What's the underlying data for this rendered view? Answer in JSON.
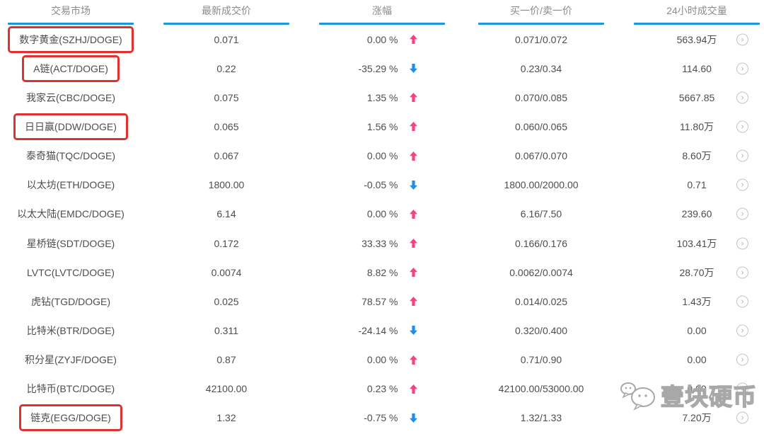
{
  "table": {
    "columns": [
      {
        "key": "market",
        "label": "交易市场"
      },
      {
        "key": "price",
        "label": "最新成交价"
      },
      {
        "key": "change",
        "label": "涨幅"
      },
      {
        "key": "bid_ask",
        "label": "买一价/卖一价"
      },
      {
        "key": "volume",
        "label": "24小时成交量"
      }
    ],
    "rows": [
      {
        "market": "数字黄金(SZHJ/DOGE)",
        "highlighted": true,
        "price": "0.071",
        "change": "0.00 %",
        "direction": "up",
        "bid_ask": "0.071/0.072",
        "volume": "563.94万"
      },
      {
        "market": "A链(ACT/DOGE)",
        "highlighted": true,
        "price": "0.22",
        "change": "-35.29 %",
        "direction": "down",
        "bid_ask": "0.23/0.34",
        "volume": "114.60"
      },
      {
        "market": "我家云(CBC/DOGE)",
        "highlighted": false,
        "price": "0.075",
        "change": "1.35 %",
        "direction": "up",
        "bid_ask": "0.070/0.085",
        "volume": "5667.85"
      },
      {
        "market": "日日赢(DDW/DOGE)",
        "highlighted": true,
        "price": "0.065",
        "change": "1.56 %",
        "direction": "up",
        "bid_ask": "0.060/0.065",
        "volume": "11.80万"
      },
      {
        "market": "泰奇猫(TQC/DOGE)",
        "highlighted": false,
        "price": "0.067",
        "change": "0.00 %",
        "direction": "up",
        "bid_ask": "0.067/0.070",
        "volume": "8.60万"
      },
      {
        "market": "以太坊(ETH/DOGE)",
        "highlighted": false,
        "price": "1800.00",
        "change": "-0.05 %",
        "direction": "down",
        "bid_ask": "1800.00/2000.00",
        "volume": "0.71"
      },
      {
        "market": "以太大陆(EMDC/DOGE)",
        "highlighted": false,
        "price": "6.14",
        "change": "0.00 %",
        "direction": "up",
        "bid_ask": "6.16/7.50",
        "volume": "239.60"
      },
      {
        "market": "星桥链(SDT/DOGE)",
        "highlighted": false,
        "price": "0.172",
        "change": "33.33 %",
        "direction": "up",
        "bid_ask": "0.166/0.176",
        "volume": "103.41万"
      },
      {
        "market": "LVTC(LVTC/DOGE)",
        "highlighted": false,
        "price": "0.0074",
        "change": "8.82 %",
        "direction": "up",
        "bid_ask": "0.0062/0.0074",
        "volume": "28.70万"
      },
      {
        "market": "虎钻(TGD/DOGE)",
        "highlighted": false,
        "price": "0.025",
        "change": "78.57 %",
        "direction": "up",
        "bid_ask": "0.014/0.025",
        "volume": "1.43万"
      },
      {
        "market": "比特米(BTR/DOGE)",
        "highlighted": false,
        "price": "0.311",
        "change": "-24.14 %",
        "direction": "down",
        "bid_ask": "0.320/0.400",
        "volume": "0.00"
      },
      {
        "market": "积分星(ZYJF/DOGE)",
        "highlighted": false,
        "price": "0.87",
        "change": "0.00 %",
        "direction": "up",
        "bid_ask": "0.71/0.90",
        "volume": "0.00"
      },
      {
        "market": "比特币(BTC/DOGE)",
        "highlighted": false,
        "price": "42100.00",
        "change": "0.23 %",
        "direction": "up",
        "bid_ask": "42100.00/53000.00",
        "volume": "0.00"
      },
      {
        "market": "链克(EGG/DOGE)",
        "highlighted": true,
        "price": "1.32",
        "change": "-0.75 %",
        "direction": "down",
        "bid_ask": "1.32/1.33",
        "volume": "7.20万"
      }
    ]
  },
  "icons": {
    "row_action": "chevron-right-circle",
    "up_arrow": "up-arrow",
    "down_arrow": "down-arrow",
    "watermark_icon": "chat-bubbles"
  },
  "watermark": {
    "text": "壹块硬币"
  },
  "colors": {
    "accent-blue": "#1e96dc",
    "up-pink": "#f4447e",
    "down-blue": "#1e8ee8",
    "highlight-red": "#e03030",
    "header-gray": "#8b8b8b",
    "text-gray": "#4d4d4d",
    "chevron-gray": "#c4c4c4"
  }
}
